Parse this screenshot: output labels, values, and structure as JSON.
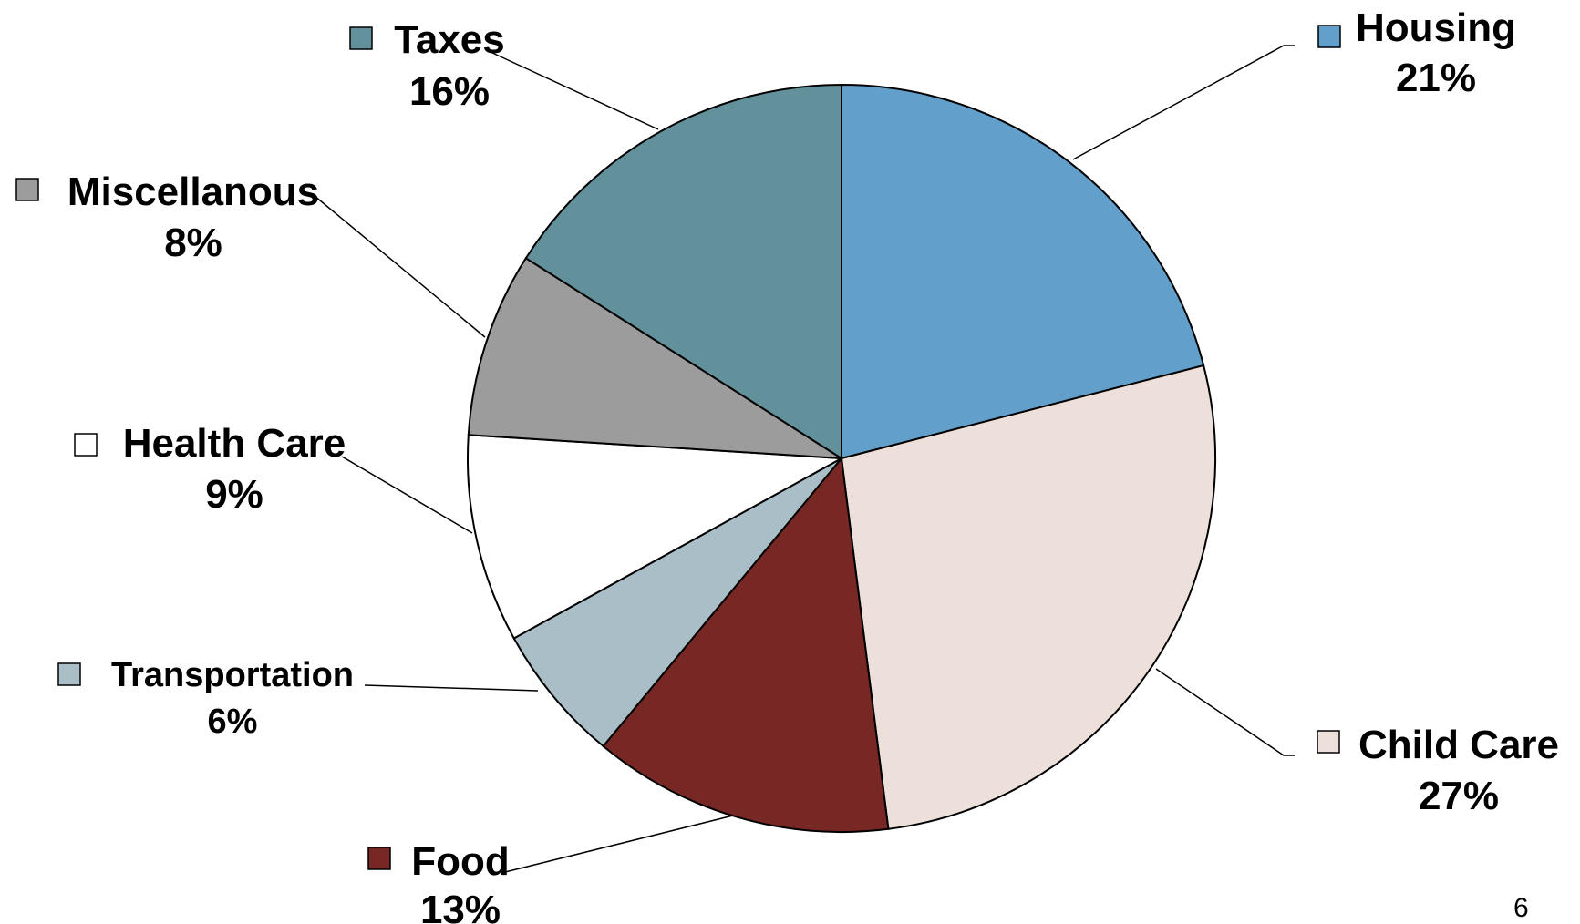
{
  "chart_data": {
    "type": "pie",
    "title": "",
    "slices": [
      {
        "label": "Housing",
        "value": 21,
        "percent_label": "21%",
        "color": "#629FCB"
      },
      {
        "label": "Child Care",
        "value": 27,
        "percent_label": "27%",
        "color": "#EDE0DB"
      },
      {
        "label": "Food",
        "value": 13,
        "percent_label": "13%",
        "color": "#772724"
      },
      {
        "label": "Transportation",
        "value": 6,
        "percent_label": "6%",
        "color": "#AABEC7"
      },
      {
        "label": "Health Care",
        "value": 9,
        "percent_label": "9%",
        "color": "#FFFFFF"
      },
      {
        "label": "Miscellanous",
        "value": 8,
        "percent_label": "8%",
        "color": "#9C9C9C"
      },
      {
        "label": "Taxes",
        "value": 16,
        "percent_label": "16%",
        "color": "#62909B"
      }
    ],
    "start": "12 o'clock",
    "direction": "clockwise",
    "labels": "outside with leader lines"
  },
  "page_number": "6"
}
